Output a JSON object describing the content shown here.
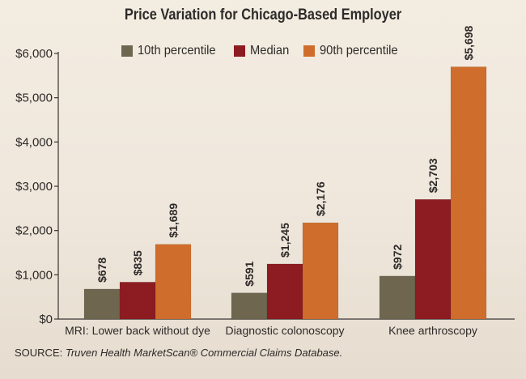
{
  "chart_data": {
    "type": "bar",
    "title": "Price Variation for Chicago-Based Employer",
    "categories": [
      "MRI: Lower back without dye",
      "Diagnostic colonoscopy",
      "Knee arthroscopy"
    ],
    "series": [
      {
        "name": "10th percentile",
        "color": "#6f6650",
        "values": [
          678,
          591,
          972
        ],
        "labels": [
          "$678",
          "$591",
          "$972"
        ]
      },
      {
        "name": "Median",
        "color": "#8d1c22",
        "values": [
          835,
          1245,
          2703
        ],
        "labels": [
          "$835",
          "$1,245",
          "$2,703"
        ]
      },
      {
        "name": "90th percentile",
        "color": "#cf6e2c",
        "values": [
          1689,
          2176,
          5698
        ],
        "labels": [
          "$1,689",
          "$2,176",
          "$5,698"
        ]
      }
    ],
    "yticks": [
      0,
      1000,
      2000,
      3000,
      4000,
      5000,
      6000
    ],
    "ytick_labels": [
      "$0",
      "$1,000",
      "$2,000",
      "$3,000",
      "$4,000",
      "$5,000",
      "$6,000"
    ],
    "ylim": [
      0,
      6000
    ],
    "xlabel": "",
    "ylabel": "",
    "legend_position": "top",
    "grid": false
  },
  "source": {
    "prefix": "SOURCE: ",
    "text": "Truven Health MarketScan® Commercial Claims Database."
  }
}
